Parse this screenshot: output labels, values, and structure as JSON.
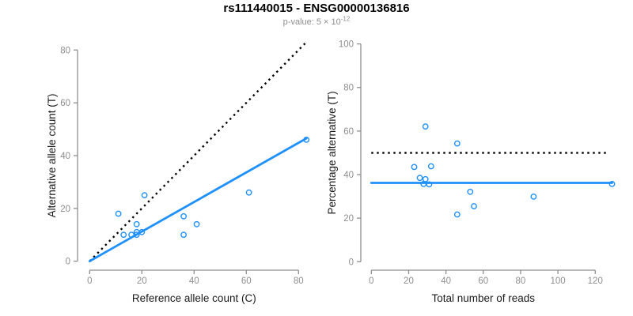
{
  "header": {
    "title": "rs111440015 - ENSG00000136816",
    "subtitle": {
      "text": "p-value: 5 × 10",
      "exponent": "-12"
    }
  },
  "colors": {
    "accent_blue": "#1E90FF",
    "dotted_line_black": "#000000",
    "axis_gray": "#8E8E8E",
    "label_black": "#1A1A1A",
    "subtitle_gray": "#8E8E8E",
    "background": "#FFFFFF"
  },
  "chart_data": [
    {
      "type": "scatter",
      "panel": "left",
      "xlabel": "Reference allele count (C)",
      "ylabel": "Alternative allele count (T)",
      "xlim": [
        0,
        86
      ],
      "ylim": [
        0,
        83
      ],
      "xticks": [
        0,
        20,
        40,
        60,
        80
      ],
      "yticks": [
        0,
        20,
        40,
        60,
        80
      ],
      "grid": false,
      "legend": "none",
      "marker": "open-circle",
      "points": [
        [
          11,
          18
        ],
        [
          21,
          25
        ],
        [
          13,
          10
        ],
        [
          18,
          14
        ],
        [
          16,
          10
        ],
        [
          18,
          11
        ],
        [
          18,
          10
        ],
        [
          20,
          11
        ],
        [
          36,
          17
        ],
        [
          41,
          14
        ],
        [
          36,
          10
        ],
        [
          61,
          26
        ],
        [
          83,
          46
        ]
      ],
      "lines": [
        {
          "name": "identity-line",
          "style": "dotted",
          "color": "#000000",
          "x1": 0,
          "y1": 0,
          "x2": 83,
          "y2": 83
        },
        {
          "name": "allelic-fraction-fit-line",
          "style": "solid",
          "color": "#1E90FF",
          "x1": 0,
          "y1": 0,
          "x2": 83,
          "y2": 46.5
        }
      ]
    },
    {
      "type": "scatter",
      "panel": "right",
      "xlabel": "Total number of reads",
      "ylabel": "Percentage alternative (T)",
      "xlim": [
        0,
        129
      ],
      "ylim": [
        0,
        100
      ],
      "xticks": [
        0,
        20,
        40,
        60,
        80,
        100,
        120
      ],
      "yticks": [
        0,
        20,
        40,
        60,
        80,
        100
      ],
      "grid": false,
      "legend": "none",
      "marker": "open-circle",
      "points": [
        [
          29,
          62.1
        ],
        [
          46,
          54.3
        ],
        [
          23,
          43.5
        ],
        [
          32,
          43.8
        ],
        [
          26,
          38.5
        ],
        [
          29,
          37.9
        ],
        [
          28,
          35.7
        ],
        [
          31,
          35.5
        ],
        [
          53,
          32.1
        ],
        [
          55,
          25.5
        ],
        [
          46,
          21.7
        ],
        [
          87,
          29.9
        ],
        [
          129,
          35.7
        ]
      ],
      "lines": [
        {
          "name": "fifty-percent-line",
          "style": "dotted",
          "color": "#000000",
          "x1": 0,
          "y1": 50,
          "x2": 126,
          "y2": 50
        },
        {
          "name": "mean-percentage-line",
          "style": "solid",
          "color": "#1E90FF",
          "x1": 0,
          "y1": 36.2,
          "x2": 129,
          "y2": 36.2
        }
      ]
    }
  ]
}
